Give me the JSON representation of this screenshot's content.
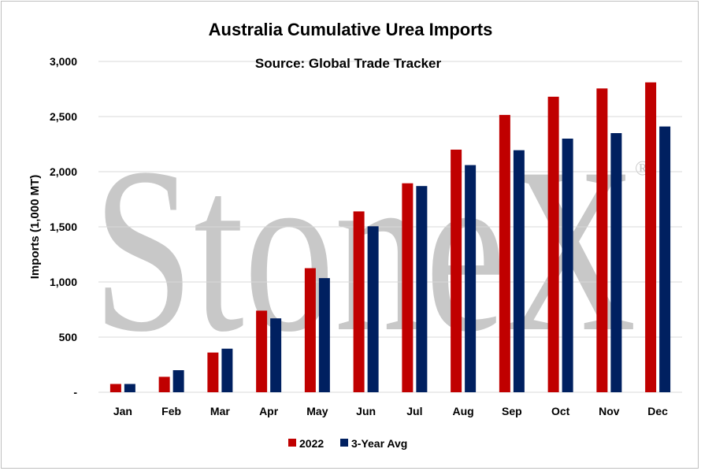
{
  "chart_data": {
    "type": "bar",
    "title": "Australia Cumulative Urea Imports",
    "subtitle": "Source: Global Trade Tracker",
    "xlabel": "",
    "ylabel": "Imports (1,000 MT)",
    "ylim": [
      0,
      3000
    ],
    "yticks": [
      0,
      500,
      1000,
      1500,
      2000,
      2500,
      3000
    ],
    "ytick_labels": [
      "-",
      "500",
      "1,000",
      "1,500",
      "2,000",
      "2,500",
      "3,000"
    ],
    "categories": [
      "Jan",
      "Feb",
      "Mar",
      "Apr",
      "May",
      "Jun",
      "Jul",
      "Aug",
      "Sep",
      "Oct",
      "Nov",
      "Dec"
    ],
    "series": [
      {
        "name": "2022",
        "color": "#c00000",
        "values": [
          75,
          140,
          360,
          740,
          1125,
          1640,
          1895,
          2200,
          2515,
          2680,
          2755,
          2810
        ]
      },
      {
        "name": "3-Year Avg",
        "color": "#002060",
        "values": [
          75,
          200,
          395,
          670,
          1035,
          1505,
          1870,
          2060,
          2195,
          2300,
          2350,
          2410
        ]
      }
    ],
    "grid": "horizontal",
    "legend_position": "bottom",
    "watermark": "StoneX",
    "watermark_mark": "®"
  }
}
